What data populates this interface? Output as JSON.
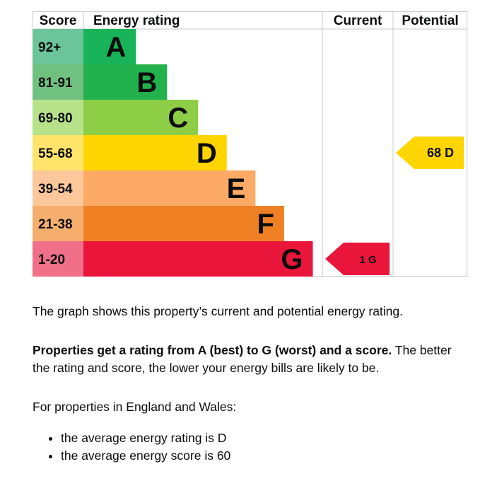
{
  "chart_data": {
    "type": "bar",
    "headers": {
      "score": "Score",
      "rating": "Energy rating",
      "current": "Current",
      "potential": "Potential"
    },
    "bands": [
      {
        "letter": "A",
        "range": "92+",
        "color": "#19b459",
        "range_color": "#6cc49a",
        "width_fraction": 0.22
      },
      {
        "letter": "B",
        "range": "81-91",
        "color": "#23b14d",
        "range_color": "#70c080",
        "width_fraction": 0.35
      },
      {
        "letter": "C",
        "range": "69-80",
        "color": "#8dce46",
        "range_color": "#b8e28a",
        "width_fraction": 0.48
      },
      {
        "letter": "D",
        "range": "55-68",
        "color": "#ffd500",
        "range_color": "#ffe46b",
        "width_fraction": 0.6
      },
      {
        "letter": "E",
        "range": "39-54",
        "color": "#fcaa65",
        "range_color": "#fdc79c",
        "width_fraction": 0.72
      },
      {
        "letter": "F",
        "range": "21-38",
        "color": "#ef8023",
        "range_color": "#f6ae6e",
        "width_fraction": 0.84
      },
      {
        "letter": "G",
        "range": "1-20",
        "color": "#e9153b",
        "range_color": "#f0708a",
        "width_fraction": 0.96
      }
    ],
    "current": {
      "score": 1,
      "band": "G",
      "label": "1 G",
      "color": "#e9153b",
      "text_color": "#0b0c0c"
    },
    "potential": {
      "score": 68,
      "band": "D",
      "label": "68 D",
      "color": "#ffd500",
      "text_color": "#0b0c0c"
    }
  },
  "text": {
    "p1": "The graph shows this property’s current and potential energy rating.",
    "p2_bold": "Properties get a rating from A (best) to G (worst) and a score.",
    "p2_rest": " The better the rating and score, the lower your energy bills are likely to be.",
    "p3": "For properties in England and Wales:",
    "avg_items": [
      "the average energy rating is D",
      "the average energy score is 60"
    ]
  }
}
